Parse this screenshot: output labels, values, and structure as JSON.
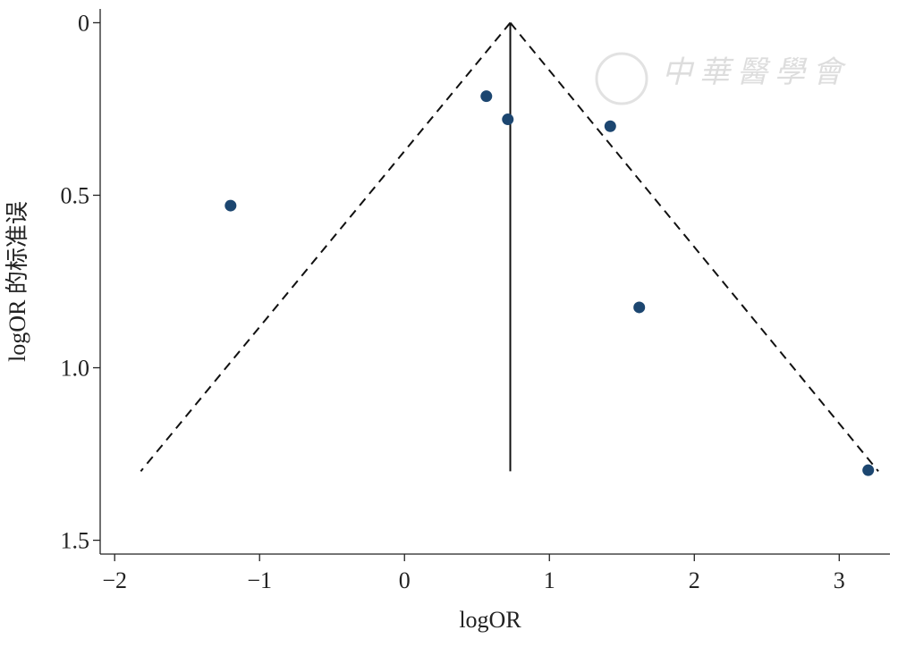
{
  "chart_data": {
    "type": "scatter",
    "x_label": "logOR",
    "y_label": "logOR 的标准误",
    "watermark": "中華醫學會",
    "x": [
      -1.2,
      0.565,
      0.713,
      1.42,
      1.62,
      3.2
    ],
    "values": [
      0.53,
      0.213,
      0.28,
      0.3,
      0.825,
      1.297
    ],
    "color": "#1c4670",
    "xlim": [
      -2.1,
      3.35
    ],
    "ylim": [
      -0.04,
      1.54
    ],
    "y_inverted": true,
    "xticks": [
      {
        "value": -2,
        "label": "−2"
      },
      {
        "value": -1,
        "label": "−1"
      },
      0,
      1,
      2,
      3
    ],
    "yticks": [
      0,
      0.5,
      {
        "value": 1,
        "label": "1.0"
      },
      1.5
    ],
    "pooled_line": {
      "x": [
        0.73,
        0.73
      ],
      "y": [
        0,
        1.3
      ]
    },
    "funnel_left": {
      "x": [
        0.73,
        -1.82
      ],
      "y": [
        0,
        1.3
      ]
    },
    "funnel_right": {
      "x": [
        0.73,
        3.27
      ],
      "y": [
        0,
        1.3
      ]
    }
  }
}
